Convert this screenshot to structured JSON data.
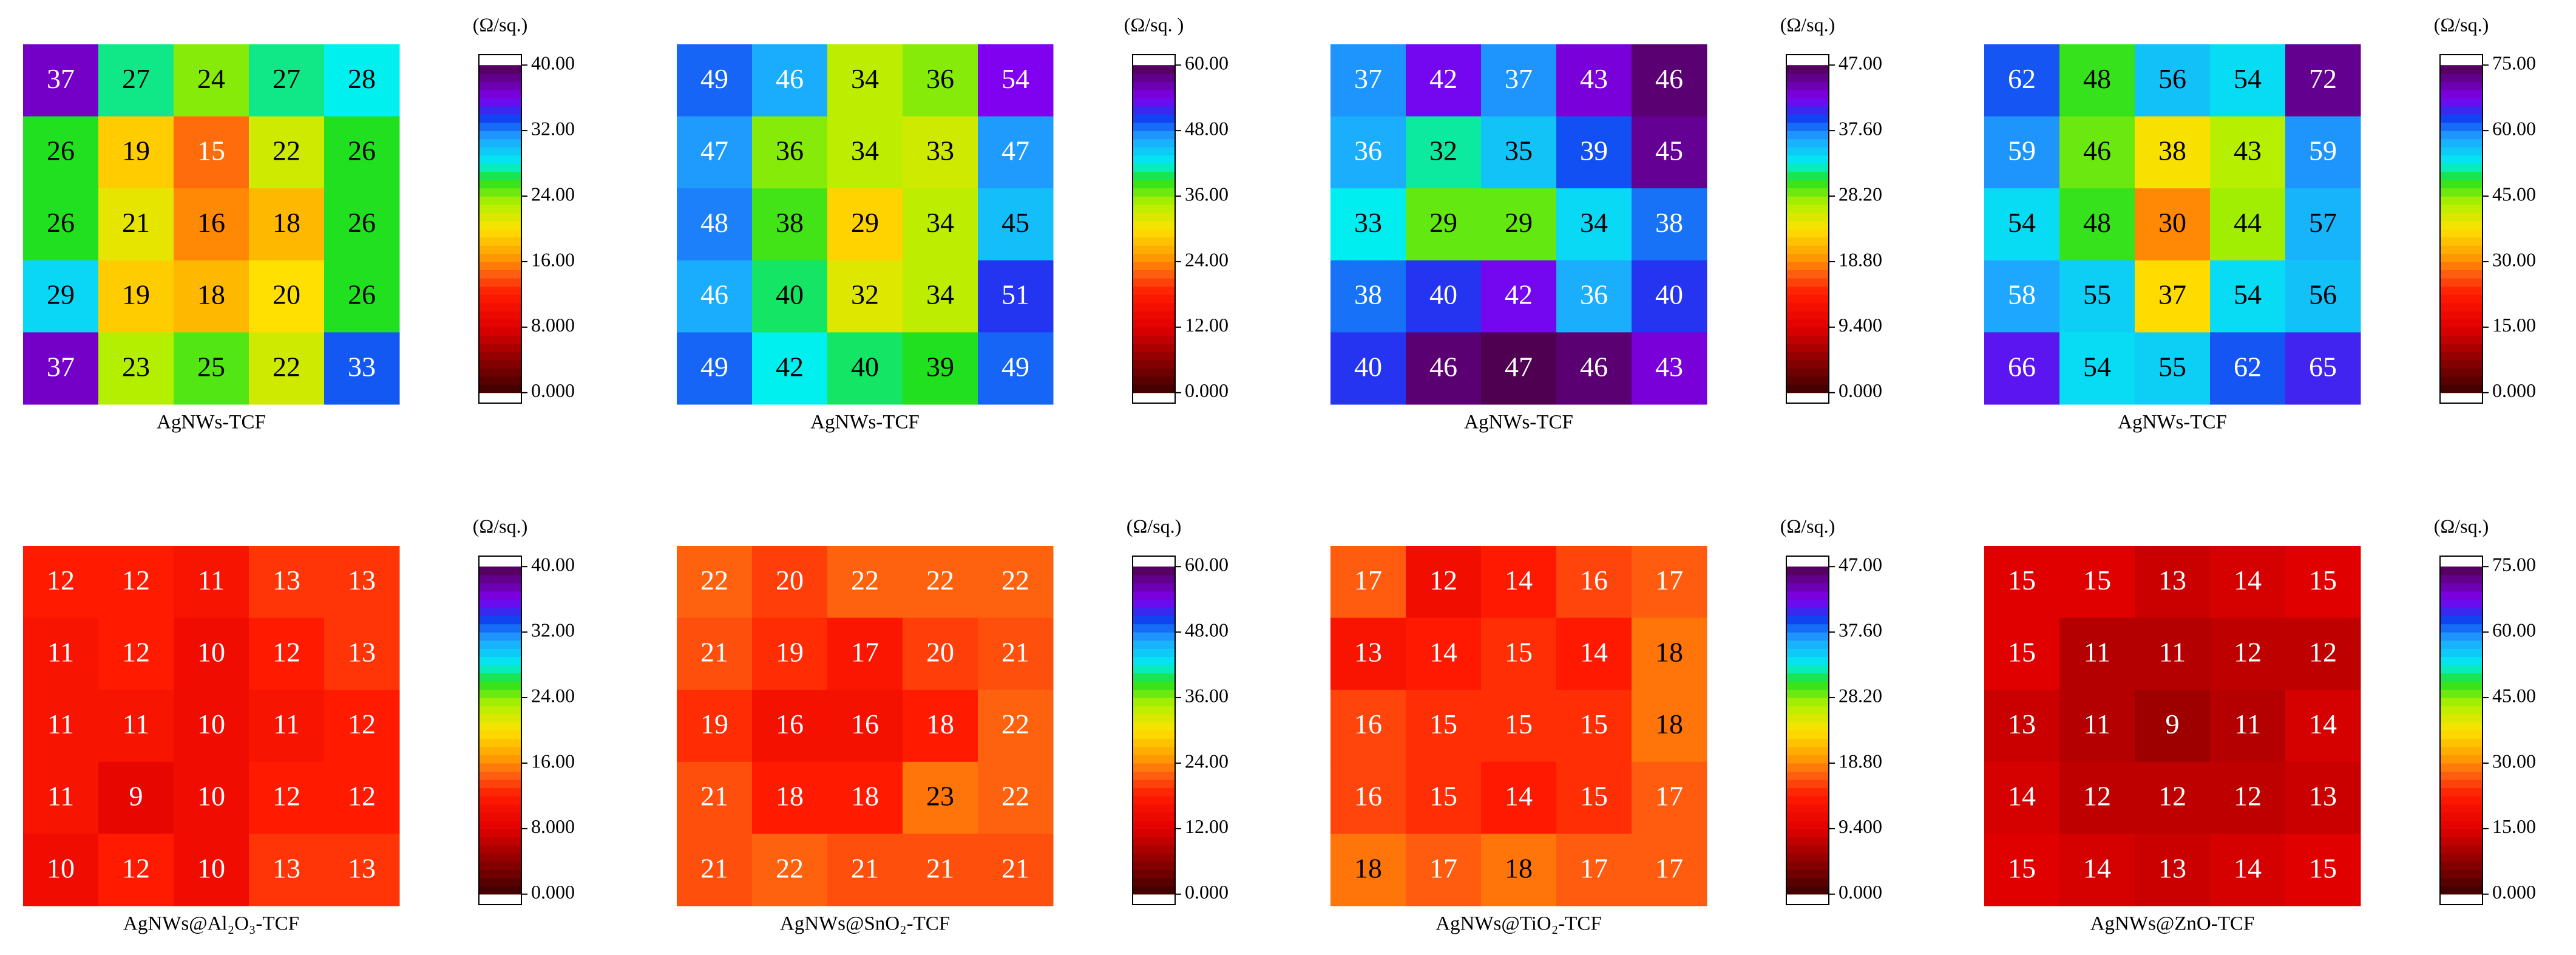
{
  "chart_data": [
    {
      "type": "heatmap",
      "xlabel": "AgNWs-TCF",
      "colorbar_label": "(Ω/sq.)",
      "zlim": [
        0,
        40
      ],
      "zticks": [
        {
          "value": 0,
          "label": "0.000"
        },
        {
          "value": 8,
          "label": "8.000"
        },
        {
          "value": 16,
          "label": "16.00"
        },
        {
          "value": 24,
          "label": "24.00"
        },
        {
          "value": 32,
          "label": "32.00"
        },
        {
          "value": 40,
          "label": "40.00"
        }
      ],
      "values": [
        [
          37,
          27,
          24,
          27,
          28
        ],
        [
          26,
          19,
          15,
          22,
          26
        ],
        [
          26,
          21,
          16,
          18,
          26
        ],
        [
          29,
          19,
          18,
          20,
          26
        ],
        [
          37,
          23,
          25,
          22,
          33
        ]
      ]
    },
    {
      "type": "heatmap",
      "xlabel": "AgNWs-TCF",
      "colorbar_label": "(Ω/sq. )",
      "zlim": [
        0,
        60
      ],
      "zticks": [
        {
          "value": 0,
          "label": "0.000"
        },
        {
          "value": 12,
          "label": "12.00"
        },
        {
          "value": 24,
          "label": "24.00"
        },
        {
          "value": 36,
          "label": "36.00"
        },
        {
          "value": 48,
          "label": "48.00"
        },
        {
          "value": 60,
          "label": "60.00"
        }
      ],
      "values": [
        [
          49,
          46,
          34,
          36,
          54
        ],
        [
          47,
          36,
          34,
          33,
          47
        ],
        [
          48,
          38,
          29,
          34,
          45
        ],
        [
          46,
          40,
          32,
          34,
          51
        ],
        [
          49,
          42,
          40,
          39,
          49
        ]
      ]
    },
    {
      "type": "heatmap",
      "xlabel": "AgNWs-TCF",
      "colorbar_label": "(Ω/sq.)",
      "zlim": [
        0,
        47
      ],
      "zticks": [
        {
          "value": 0,
          "label": "0.000"
        },
        {
          "value": 9.4,
          "label": "9.400"
        },
        {
          "value": 18.8,
          "label": "18.80"
        },
        {
          "value": 28.2,
          "label": "28.20"
        },
        {
          "value": 37.6,
          "label": "37.60"
        },
        {
          "value": 47,
          "label": "47.00"
        }
      ],
      "values": [
        [
          37,
          42,
          37,
          43,
          46
        ],
        [
          36,
          32,
          35,
          39,
          45
        ],
        [
          33,
          29,
          29,
          34,
          38
        ],
        [
          38,
          40,
          42,
          36,
          40
        ],
        [
          40,
          46,
          47,
          46,
          43
        ]
      ]
    },
    {
      "type": "heatmap",
      "xlabel": "AgNWs-TCF",
      "colorbar_label": "(Ω/sq.)",
      "zlim": [
        0,
        75
      ],
      "zticks": [
        {
          "value": 0,
          "label": "0.000"
        },
        {
          "value": 15,
          "label": "15.00"
        },
        {
          "value": 30,
          "label": "30.00"
        },
        {
          "value": 45,
          "label": "45.00"
        },
        {
          "value": 60,
          "label": "60.00"
        },
        {
          "value": 75,
          "label": "75.00"
        }
      ],
      "values": [
        [
          62,
          48,
          56,
          54,
          72
        ],
        [
          59,
          46,
          38,
          43,
          59
        ],
        [
          54,
          48,
          30,
          44,
          57
        ],
        [
          58,
          55,
          37,
          54,
          56
        ],
        [
          66,
          54,
          55,
          62,
          65
        ]
      ]
    },
    {
      "type": "heatmap",
      "xlabel": "AgNWs@Al₂O₃-TCF",
      "colorbar_label": "(Ω/sq.)",
      "zlim": [
        0,
        40
      ],
      "zticks": [
        {
          "value": 0,
          "label": "0.000"
        },
        {
          "value": 8,
          "label": "8.000"
        },
        {
          "value": 16,
          "label": "16.00"
        },
        {
          "value": 24,
          "label": "24.00"
        },
        {
          "value": 32,
          "label": "32.00"
        },
        {
          "value": 40,
          "label": "40.00"
        }
      ],
      "values": [
        [
          12,
          12,
          11,
          13,
          13
        ],
        [
          11,
          12,
          10,
          12,
          13
        ],
        [
          11,
          11,
          10,
          11,
          12
        ],
        [
          11,
          9,
          10,
          12,
          12
        ],
        [
          10,
          12,
          10,
          13,
          13
        ]
      ]
    },
    {
      "type": "heatmap",
      "xlabel": "AgNWs@SnO₂-TCF",
      "colorbar_label": "(Ω/sq.)",
      "zlim": [
        0,
        60
      ],
      "zticks": [
        {
          "value": 0,
          "label": "0.000"
        },
        {
          "value": 12,
          "label": "12.00"
        },
        {
          "value": 24,
          "label": "24.00"
        },
        {
          "value": 36,
          "label": "36.00"
        },
        {
          "value": 48,
          "label": "48.00"
        },
        {
          "value": 60,
          "label": "60.00"
        }
      ],
      "values": [
        [
          22,
          20,
          22,
          22,
          22
        ],
        [
          21,
          19,
          17,
          20,
          21
        ],
        [
          19,
          16,
          16,
          18,
          22
        ],
        [
          21,
          18,
          18,
          23,
          22
        ],
        [
          21,
          22,
          21,
          21,
          21
        ]
      ]
    },
    {
      "type": "heatmap",
      "xlabel": "AgNWs@TiO₂-TCF",
      "colorbar_label": "(Ω/sq.)",
      "zlim": [
        0,
        47
      ],
      "zticks": [
        {
          "value": 0,
          "label": "0.000"
        },
        {
          "value": 9.4,
          "label": "9.400"
        },
        {
          "value": 18.8,
          "label": "18.80"
        },
        {
          "value": 28.2,
          "label": "28.20"
        },
        {
          "value": 37.6,
          "label": "37.60"
        },
        {
          "value": 47,
          "label": "47.00"
        }
      ],
      "values": [
        [
          17,
          12,
          14,
          16,
          17
        ],
        [
          13,
          14,
          15,
          14,
          18
        ],
        [
          16,
          15,
          15,
          15,
          18
        ],
        [
          16,
          15,
          14,
          15,
          17
        ],
        [
          18,
          17,
          18,
          17,
          17
        ]
      ]
    },
    {
      "type": "heatmap",
      "xlabel": "AgNWs@ZnO-TCF",
      "colorbar_label": "(Ω/sq.)",
      "zlim": [
        0,
        75
      ],
      "zticks": [
        {
          "value": 0,
          "label": "0.000"
        },
        {
          "value": 15,
          "label": "15.00"
        },
        {
          "value": 30,
          "label": "30.00"
        },
        {
          "value": 45,
          "label": "45.00"
        },
        {
          "value": 60,
          "label": "60.00"
        },
        {
          "value": 75,
          "label": "75.00"
        }
      ],
      "values": [
        [
          15,
          15,
          13,
          14,
          15
        ],
        [
          15,
          11,
          11,
          12,
          12
        ],
        [
          13,
          11,
          9,
          11,
          14
        ],
        [
          14,
          12,
          12,
          12,
          13
        ],
        [
          15,
          14,
          13,
          14,
          15
        ]
      ]
    }
  ]
}
